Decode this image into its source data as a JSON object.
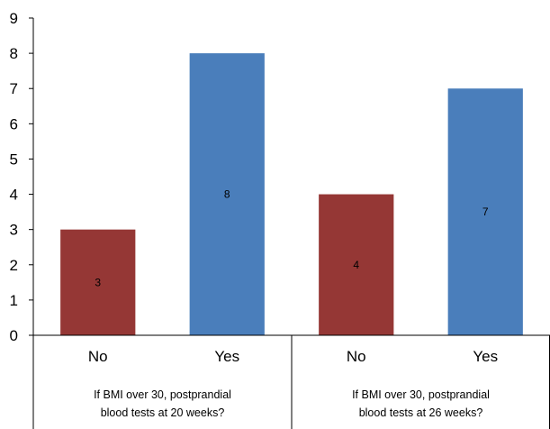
{
  "chart_data": {
    "type": "bar",
    "ylim": [
      0,
      9
    ],
    "yticks": [
      0,
      1,
      2,
      3,
      4,
      5,
      6,
      7,
      8,
      9
    ],
    "grid": false,
    "groups": [
      {
        "label_lines": [
          "If BMI over 30, postprandial",
          "blood tests at 20 weeks?"
        ],
        "bars": [
          {
            "category": "No",
            "value": 3,
            "color": "#953735"
          },
          {
            "category": "Yes",
            "value": 8,
            "color": "#4a7ebb"
          }
        ]
      },
      {
        "label_lines": [
          "If BMI over 30, postprandial",
          "blood tests at 26 weeks?"
        ],
        "bars": [
          {
            "category": "No",
            "value": 4,
            "color": "#953735"
          },
          {
            "category": "Yes",
            "value": 7,
            "color": "#4a7ebb"
          }
        ]
      }
    ]
  }
}
